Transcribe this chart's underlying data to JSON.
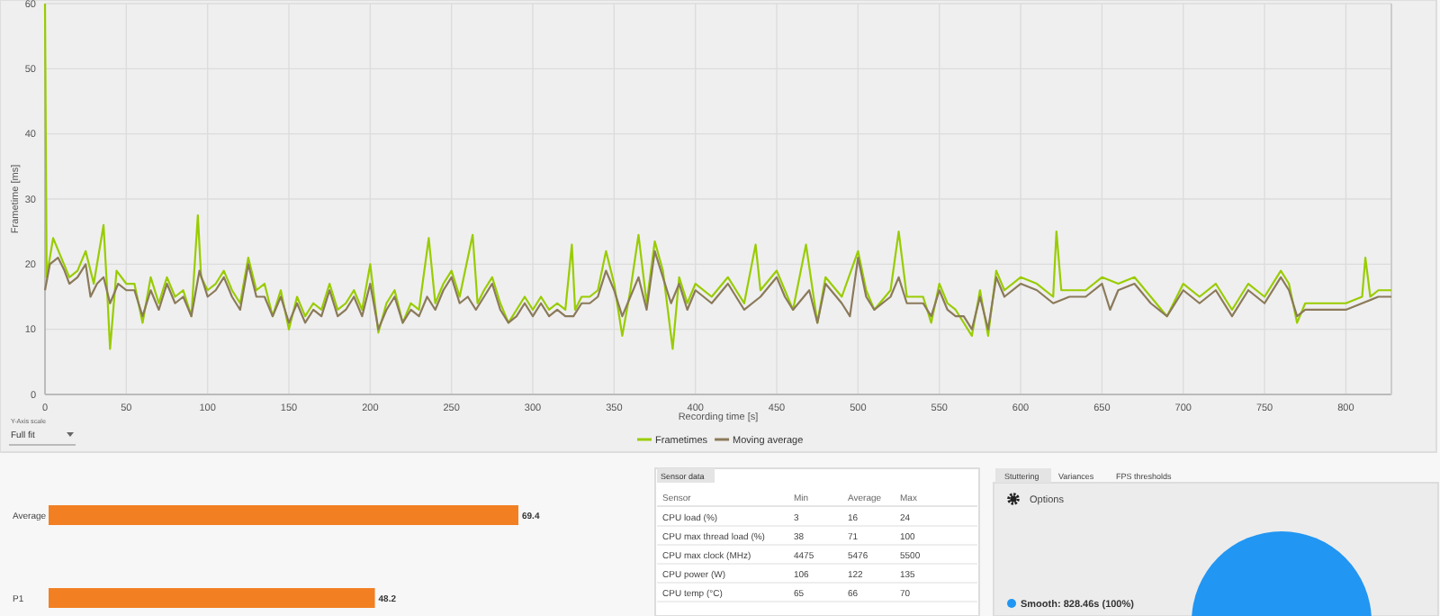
{
  "chart_data": [
    {
      "type": "line",
      "xlabel": "Recording time [s]",
      "ylabel": "Frametime [ms]",
      "xlim": [
        0,
        828
      ],
      "ylim": [
        0,
        60
      ],
      "xticks": [
        0,
        50,
        100,
        150,
        200,
        250,
        300,
        350,
        400,
        450,
        500,
        550,
        600,
        650,
        700,
        750,
        800
      ],
      "yticks": [
        0,
        10,
        20,
        30,
        40,
        50,
        60
      ],
      "grid": true,
      "legend": "bottom",
      "marker": "none",
      "line_style": "solid",
      "annotations": [
        "Y-Axis scale",
        "Full fit"
      ],
      "series": [
        {
          "name": "Frametimes",
          "color": "#99cc00",
          "x": [
            0,
            1,
            5,
            10,
            15,
            20,
            25,
            30,
            36,
            38,
            40,
            44,
            50,
            55,
            60,
            65,
            70,
            75,
            80,
            85,
            90,
            94,
            96,
            100,
            105,
            110,
            115,
            120,
            125,
            130,
            135,
            140,
            145,
            150,
            155,
            160,
            165,
            170,
            175,
            180,
            185,
            190,
            195,
            200,
            205,
            210,
            215,
            220,
            225,
            230,
            236,
            240,
            245,
            250,
            255,
            263,
            266,
            270,
            275,
            280,
            285,
            290,
            295,
            300,
            305,
            310,
            315,
            320,
            324,
            326,
            330,
            335,
            340,
            345,
            350,
            355,
            360,
            365,
            370,
            375,
            380,
            386,
            390,
            395,
            400,
            410,
            420,
            430,
            437,
            440,
            450,
            455,
            460,
            468,
            475,
            480,
            490,
            500,
            505,
            510,
            520,
            525,
            530,
            540,
            545,
            550,
            555,
            560,
            570,
            575,
            580,
            585,
            590,
            600,
            610,
            620,
            622,
            625,
            630,
            640,
            650,
            660,
            670,
            680,
            690,
            700,
            710,
            720,
            730,
            740,
            750,
            760,
            765,
            770,
            775,
            790,
            800,
            810,
            812,
            815,
            820,
            828
          ],
          "values": [
            60,
            18,
            24,
            21,
            18,
            19,
            22,
            17,
            26,
            17,
            7,
            19,
            17,
            17,
            11,
            18,
            14,
            18,
            15,
            16,
            12,
            27.5,
            18,
            16,
            17,
            19,
            16,
            14,
            21,
            16,
            17,
            12,
            16,
            10,
            15,
            12,
            14,
            13,
            17,
            13,
            14,
            16,
            13,
            20,
            9.5,
            14,
            16,
            11,
            14,
            13,
            24,
            14,
            17,
            19,
            15,
            24.5,
            14,
            16,
            18,
            14,
            11,
            13,
            15,
            13,
            15,
            13,
            14,
            13,
            23,
            13,
            15,
            15,
            16,
            22,
            17,
            9,
            16,
            24.5,
            14,
            23.5,
            19,
            7,
            18,
            14,
            17,
            15,
            18,
            14,
            23,
            16,
            19,
            16,
            13,
            23,
            11,
            18,
            15,
            22,
            16,
            13,
            16,
            25,
            15,
            15,
            11,
            17,
            14,
            13,
            9,
            16,
            9,
            19,
            16,
            18,
            17,
            15,
            25,
            16,
            16,
            16,
            18,
            17,
            18,
            15,
            12,
            17,
            15,
            17,
            13,
            17,
            15,
            19,
            17,
            11,
            14,
            14,
            14,
            15,
            21,
            15,
            16,
            16
          ]
        },
        {
          "name": "Moving average",
          "color": "#8b7a5a",
          "x": [
            0,
            3,
            8,
            12,
            15,
            20,
            25,
            28,
            32,
            36,
            40,
            45,
            50,
            55,
            60,
            65,
            70,
            75,
            80,
            85,
            90,
            95,
            100,
            105,
            110,
            115,
            120,
            125,
            130,
            135,
            140,
            145,
            150,
            155,
            160,
            165,
            170,
            175,
            180,
            185,
            190,
            195,
            200,
            205,
            210,
            215,
            220,
            225,
            230,
            235,
            240,
            245,
            250,
            255,
            260,
            265,
            270,
            275,
            280,
            285,
            290,
            295,
            300,
            305,
            310,
            315,
            320,
            325,
            330,
            335,
            340,
            345,
            350,
            355,
            360,
            365,
            370,
            375,
            380,
            385,
            390,
            395,
            400,
            410,
            420,
            430,
            440,
            450,
            455,
            460,
            470,
            475,
            480,
            490,
            495,
            500,
            505,
            510,
            520,
            525,
            530,
            540,
            545,
            550,
            555,
            560,
            565,
            570,
            575,
            580,
            585,
            590,
            600,
            610,
            620,
            630,
            640,
            650,
            655,
            660,
            670,
            680,
            690,
            700,
            710,
            720,
            730,
            740,
            750,
            760,
            765,
            770,
            775,
            790,
            800,
            810,
            820,
            828
          ],
          "values": [
            16,
            20,
            21,
            19,
            17,
            18,
            20,
            15,
            17,
            18,
            14,
            17,
            16,
            16,
            12,
            16,
            13,
            17,
            14,
            15,
            12,
            19,
            15,
            16,
            18,
            15,
            13,
            20,
            15,
            15,
            12,
            15,
            11,
            14,
            11,
            13,
            12,
            16,
            12,
            13,
            15,
            12,
            17,
            10,
            13,
            15,
            11,
            13,
            12,
            15,
            13,
            16,
            18,
            14,
            15,
            13,
            15,
            17,
            13,
            11,
            12,
            14,
            12,
            14,
            12,
            13,
            12,
            12,
            14,
            14,
            15,
            19,
            16,
            12,
            15,
            18,
            13,
            22,
            18,
            14,
            17,
            13,
            16,
            14,
            17,
            13,
            15,
            18,
            15,
            13,
            16,
            11,
            17,
            14,
            12,
            21,
            15,
            13,
            15,
            18,
            14,
            14,
            12,
            16,
            13,
            12,
            12,
            10,
            15,
            10,
            18,
            15,
            17,
            16,
            14,
            15,
            15,
            17,
            13,
            16,
            17,
            14,
            12,
            16,
            14,
            16,
            12,
            16,
            14,
            18,
            16,
            12,
            13,
            13,
            13,
            14,
            15,
            15
          ]
        }
      ]
    },
    {
      "type": "bar",
      "orientation": "horizontal",
      "categories": [
        "Average",
        "P1"
      ],
      "values": [
        69.4,
        48.2
      ],
      "color": "#f28022",
      "data_labels": true,
      "tick_labels": "y"
    },
    {
      "type": "other",
      "title": "Sensor data",
      "categories": [
        "Sensor",
        "Min",
        "Average",
        "Max"
      ],
      "y_categories": [
        "CPU load (%)",
        "CPU max thread load (%)",
        "CPU max clock (MHz)",
        "CPU power (W)",
        "CPU temp (°C)"
      ],
      "annotations": [
        "3",
        "16",
        "24",
        "38",
        "71",
        "100",
        "4475",
        "5476",
        "5500",
        "106",
        "122",
        "135",
        "65",
        "66",
        "70"
      ]
    },
    {
      "type": "pie",
      "categories": [
        "Smooth"
      ],
      "values": [
        828.46
      ],
      "value_labels": [
        "828.46s (100%)"
      ],
      "colors": [
        "#2196f3"
      ],
      "legend": "left",
      "annotations": [
        "Stuttering",
        "Variances",
        "FPS thresholds",
        "Options"
      ]
    }
  ]
}
